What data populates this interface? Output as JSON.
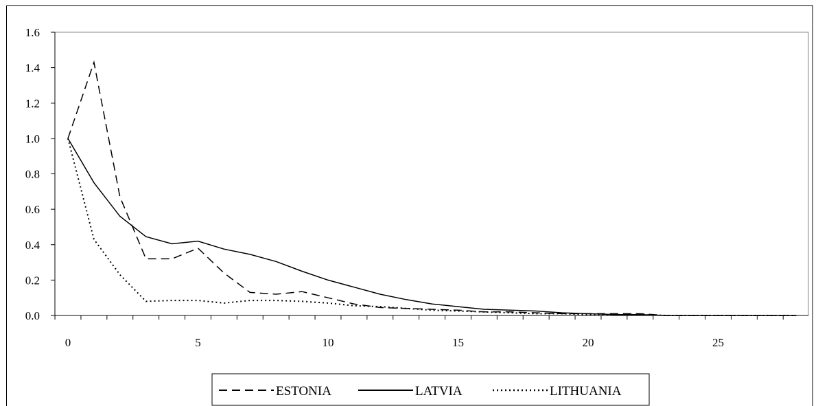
{
  "chart_data": {
    "type": "line",
    "title": "",
    "xlabel": "",
    "ylabel": "",
    "xlim": [
      0,
      28
    ],
    "ylim": [
      0,
      1.6
    ],
    "x_ticks": [
      0,
      5,
      10,
      15,
      20,
      25
    ],
    "y_ticks": [
      "0.0",
      "0.2",
      "0.4",
      "0.6",
      "0.8",
      "1.0",
      "1.2",
      "1.4",
      "1.6"
    ],
    "grid": false,
    "legend_position": "bottom",
    "x": [
      0,
      1,
      2,
      3,
      4,
      5,
      6,
      7,
      8,
      9,
      10,
      11,
      12,
      13,
      14,
      15,
      16,
      17,
      18,
      19,
      20,
      21,
      22,
      23,
      24,
      25,
      26,
      27,
      28
    ],
    "series": [
      {
        "name": "ESTONIA",
        "line_style": "dashed",
        "color": "#000000",
        "values": [
          1.0,
          1.43,
          0.67,
          0.32,
          0.32,
          0.38,
          0.24,
          0.13,
          0.12,
          0.135,
          0.1,
          0.065,
          0.045,
          0.04,
          0.035,
          0.03,
          0.02,
          0.02,
          0.015,
          0.01,
          0.01,
          0.01,
          0.01,
          0.0,
          0.0,
          0.0,
          0.0,
          0.0,
          0.0
        ]
      },
      {
        "name": "LATVIA",
        "line_style": "solid",
        "color": "#000000",
        "values": [
          1.0,
          0.75,
          0.56,
          0.445,
          0.405,
          0.42,
          0.375,
          0.345,
          0.305,
          0.25,
          0.2,
          0.16,
          0.12,
          0.09,
          0.065,
          0.05,
          0.035,
          0.03,
          0.025,
          0.015,
          0.01,
          0.005,
          0.005,
          0.0,
          0.0,
          0.0,
          0.0,
          0.0,
          0.0
        ]
      },
      {
        "name": "LITHUANIA",
        "line_style": "dotted",
        "color": "#000000",
        "values": [
          1.0,
          0.43,
          0.23,
          0.08,
          0.085,
          0.085,
          0.07,
          0.085,
          0.085,
          0.08,
          0.07,
          0.055,
          0.05,
          0.04,
          0.03,
          0.025,
          0.02,
          0.015,
          0.01,
          0.01,
          0.005,
          0.005,
          0.005,
          0.0,
          0.0,
          0.0,
          0.0,
          0.0,
          0.0
        ]
      }
    ]
  }
}
